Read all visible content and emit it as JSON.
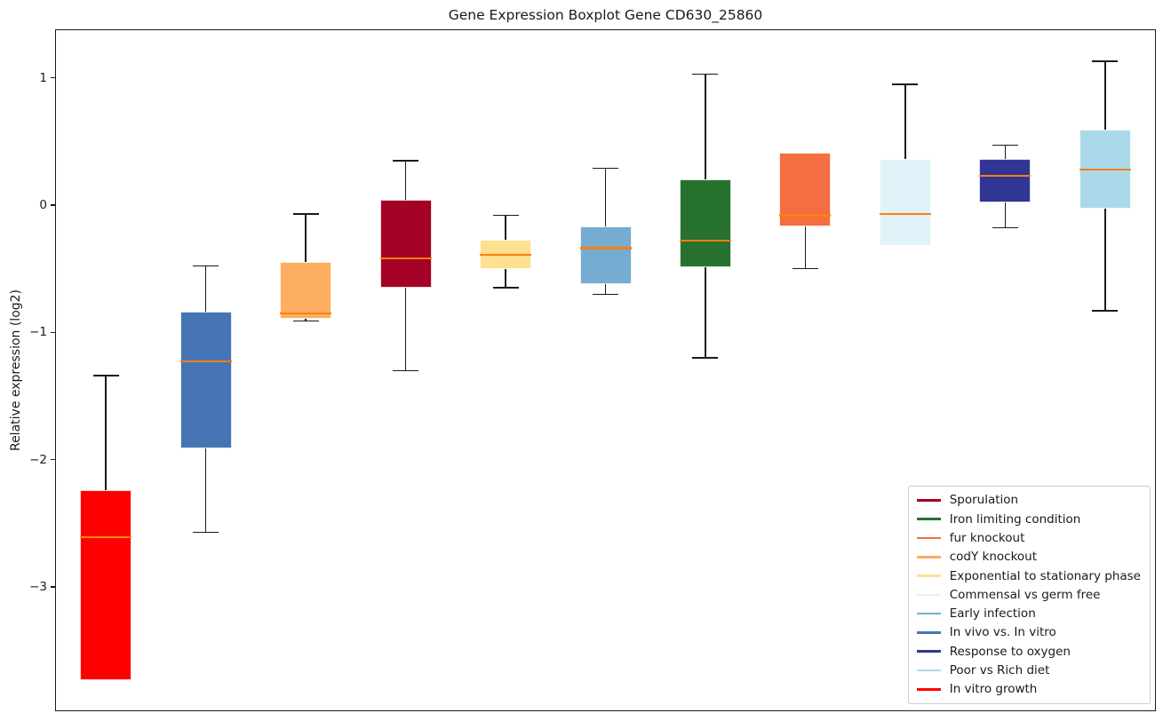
{
  "title": "Gene Expression Boxplot Gene CD630_25860",
  "ylabel": "Relative expression (log2)",
  "axes": {
    "yticks": [
      {
        "value": 1,
        "label": "1"
      },
      {
        "value": 0,
        "label": "0"
      },
      {
        "value": -1,
        "label": "−1"
      },
      {
        "value": -2,
        "label": "−2"
      },
      {
        "value": -3,
        "label": "−3"
      }
    ],
    "ylim": [
      -3.97,
      1.374
    ],
    "x_tick_labels": []
  },
  "chart_data": {
    "type": "boxplot",
    "title": "Gene Expression Boxplot Gene CD630_25860",
    "xlabel": "",
    "ylabel": "Relative expression (log2)",
    "ylim": [
      -3.97,
      1.374
    ],
    "grid": false,
    "legend_position": "lower right",
    "median_color": "#ff7f0e",
    "whisker_color": "#1a1a1a",
    "boxes": [
      {
        "condition": "In vitro growth",
        "color": "#ff0000",
        "whisker_low": -3.73,
        "q1": -3.73,
        "median": -2.61,
        "q3": -2.24,
        "whisker_high": -1.34
      },
      {
        "condition": "In vivo vs. In vitro",
        "color": "#4575b4",
        "whisker_low": -2.57,
        "q1": -1.91,
        "median": -1.23,
        "q3": -0.84,
        "whisker_high": -0.48
      },
      {
        "condition": "codY knockout",
        "color": "#fdae61",
        "whisker_low": -0.91,
        "q1": -0.89,
        "median": -0.85,
        "q3": -0.45,
        "whisker_high": -0.07
      },
      {
        "condition": "Sporulation",
        "color": "#a50026",
        "whisker_low": -1.3,
        "q1": -0.65,
        "median": -0.42,
        "q3": 0.04,
        "whisker_high": 0.35
      },
      {
        "condition": "Exponential to stationary phase",
        "color": "#fee090",
        "whisker_low": -0.65,
        "q1": -0.5,
        "median": -0.39,
        "q3": -0.27,
        "whisker_high": -0.08
      },
      {
        "condition": "Early infection",
        "color": "#74add1",
        "whisker_low": -0.7,
        "q1": -0.62,
        "median": -0.34,
        "q3": -0.17,
        "whisker_high": 0.29
      },
      {
        "condition": "Iron limiting condition",
        "color": "#26722e",
        "whisker_low": -1.2,
        "q1": -0.49,
        "median": -0.28,
        "q3": 0.2,
        "whisker_high": 1.03
      },
      {
        "condition": "fur knockout",
        "color": "#f46d43",
        "whisker_low": -0.5,
        "q1": -0.17,
        "median": -0.08,
        "q3": 0.41,
        "whisker_high": 0.41
      },
      {
        "condition": "Commensal vs germ free",
        "color": "#e0f3f8",
        "whisker_low": -0.32,
        "q1": -0.32,
        "median": -0.07,
        "q3": 0.36,
        "whisker_high": 0.95
      },
      {
        "condition": "Response to oxygen",
        "color": "#313695",
        "whisker_low": -0.18,
        "q1": 0.02,
        "median": 0.23,
        "q3": 0.36,
        "whisker_high": 0.47
      },
      {
        "condition": "Poor vs Rich diet",
        "color": "#abd9e9",
        "whisker_low": -0.83,
        "q1": -0.03,
        "median": 0.28,
        "q3": 0.59,
        "whisker_high": 1.13
      }
    ],
    "legend": [
      {
        "label": "Sporulation",
        "color": "#a50026"
      },
      {
        "label": "Iron limiting condition",
        "color": "#26722e"
      },
      {
        "label": "fur knockout",
        "color": "#f46d43"
      },
      {
        "label": "codY knockout",
        "color": "#fdae61"
      },
      {
        "label": "Exponential to stationary phase",
        "color": "#fee090"
      },
      {
        "label": "Commensal vs germ free",
        "color": "#e0f3f8"
      },
      {
        "label": "Early infection",
        "color": "#74add1"
      },
      {
        "label": "In vivo vs. In vitro",
        "color": "#4575b4"
      },
      {
        "label": "Response to oxygen",
        "color": "#313695"
      },
      {
        "label": "Poor vs Rich diet",
        "color": "#abd9e9"
      },
      {
        "label": "In vitro growth",
        "color": "#ff0000"
      }
    ]
  }
}
